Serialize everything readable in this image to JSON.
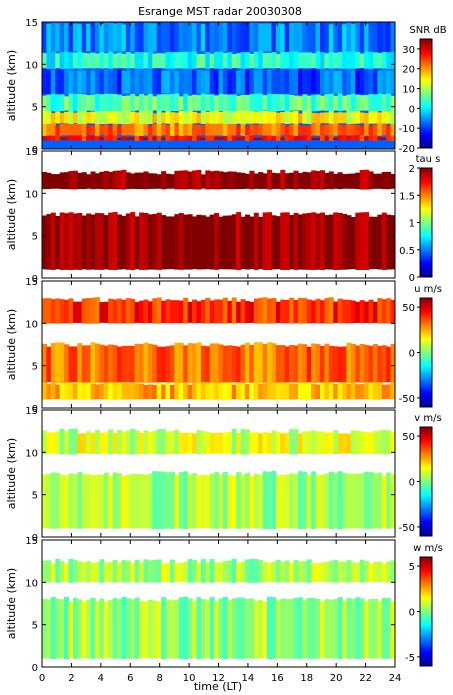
{
  "chart_data": {
    "title": "Esrange MST radar 20030308",
    "type": "heatmap",
    "xlabel": "time (LT)",
    "x_ticks": [
      0,
      2,
      4,
      6,
      8,
      10,
      12,
      14,
      16,
      18,
      20,
      22,
      24
    ],
    "xlim": [
      0,
      24
    ],
    "panels": [
      {
        "id": "snr",
        "colorbar_label": "SNR dB",
        "ylabel": "altitude (km)",
        "ylim": [
          0,
          15
        ],
        "y_ticks": [
          0,
          5,
          10,
          15
        ],
        "clim": [
          -20,
          35
        ],
        "cbar_ticks": [
          -20,
          -10,
          0,
          10,
          20,
          30
        ],
        "bands": [
          {
            "lo": 1.0,
            "hi": 1.6,
            "value": 28
          },
          {
            "lo": 1.6,
            "hi": 3.0,
            "value": 22
          },
          {
            "lo": 3.0,
            "hi": 4.5,
            "value": 14
          },
          {
            "lo": 4.5,
            "hi": 6.5,
            "value": 5
          },
          {
            "lo": 6.5,
            "hi": 9.5,
            "value": -8
          },
          {
            "lo": 9.5,
            "hi": 11.5,
            "value": 2
          },
          {
            "lo": 11.5,
            "hi": 15.0,
            "value": -6
          }
        ]
      },
      {
        "id": "tau",
        "colorbar_label": "tau s",
        "ylabel": "altitude (km)",
        "ylim": [
          0,
          15
        ],
        "y_ticks": [
          0,
          5,
          10,
          15
        ],
        "clim": [
          0,
          2
        ],
        "cbar_ticks": [
          0,
          0.5,
          1,
          1.5,
          2
        ],
        "bands": [
          {
            "lo": 1.0,
            "hi": 7.5,
            "value": 2.0
          },
          {
            "lo": 10.5,
            "hi": 12.5,
            "value": 2.0
          }
        ]
      },
      {
        "id": "u",
        "colorbar_label": "u m/s",
        "ylabel": "altitude (km)",
        "ylim": [
          0,
          15
        ],
        "y_ticks": [
          0,
          5,
          10,
          15
        ],
        "clim": [
          -60,
          60
        ],
        "cbar_ticks": [
          -50,
          0,
          50
        ],
        "bands": [
          {
            "lo": 1.0,
            "hi": 3.0,
            "value": 22
          },
          {
            "lo": 3.0,
            "hi": 7.5,
            "value": 32
          },
          {
            "lo": 10.0,
            "hi": 12.8,
            "value": 40
          }
        ]
      },
      {
        "id": "v",
        "colorbar_label": "v m/s",
        "ylabel": "altitude (km)",
        "ylim": [
          0,
          15
        ],
        "y_ticks": [
          0,
          5,
          10,
          15
        ],
        "clim": [
          -60,
          60
        ],
        "cbar_ticks": [
          -50,
          0,
          50
        ],
        "bands": [
          {
            "lo": 1.0,
            "hi": 7.5,
            "value": 5
          },
          {
            "lo": 9.8,
            "hi": 12.5,
            "value": 10
          }
        ]
      },
      {
        "id": "w",
        "colorbar_label": "w m/s",
        "ylabel": "altitude (km)",
        "ylim": [
          0,
          15
        ],
        "y_ticks": [
          0,
          5,
          10,
          15
        ],
        "clim": [
          -6,
          6
        ],
        "cbar_ticks": [
          -5,
          0,
          5
        ],
        "bands": [
          {
            "lo": 1.0,
            "hi": 8.0,
            "value": 0.3
          },
          {
            "lo": 10.0,
            "hi": 12.5,
            "value": 0.5
          }
        ]
      }
    ]
  }
}
